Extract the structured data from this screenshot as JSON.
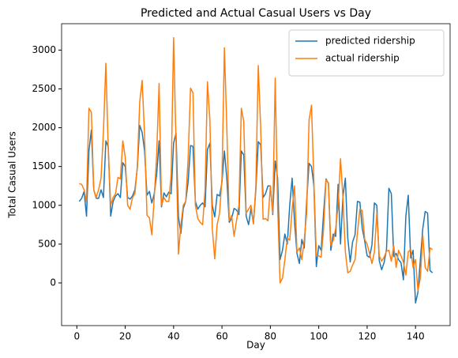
{
  "chart_data": {
    "type": "line",
    "title": "Predicted and Actual Casual Users vs Day",
    "x_label": "Day",
    "y_label": "Total Casual Users",
    "x": [
      1,
      2,
      3,
      4,
      5,
      6,
      7,
      8,
      9,
      10,
      11,
      12,
      13,
      14,
      15,
      16,
      17,
      18,
      19,
      20,
      21,
      22,
      23,
      24,
      25,
      26,
      27,
      28,
      29,
      30,
      31,
      32,
      33,
      34,
      35,
      36,
      37,
      38,
      39,
      40,
      41,
      42,
      43,
      44,
      45,
      46,
      47,
      48,
      49,
      50,
      51,
      52,
      53,
      54,
      55,
      56,
      57,
      58,
      59,
      60,
      61,
      62,
      63,
      64,
      65,
      66,
      67,
      68,
      69,
      70,
      71,
      72,
      73,
      74,
      75,
      76,
      77,
      78,
      79,
      80,
      81,
      82,
      83,
      84,
      85,
      86,
      87,
      88,
      89,
      90,
      91,
      92,
      93,
      94,
      95,
      96,
      97,
      98,
      99,
      100,
      101,
      102,
      103,
      104,
      105,
      106,
      107,
      108,
      109,
      110,
      111,
      112,
      113,
      114,
      115,
      116,
      117,
      118,
      119,
      120,
      121,
      122,
      123,
      124,
      125,
      126,
      127,
      128,
      129,
      130,
      131,
      132,
      133,
      134,
      135,
      136,
      137,
      138,
      139,
      140,
      141,
      142,
      143,
      144,
      145,
      146,
      147
    ],
    "series": [
      {
        "name": "predicted ridership",
        "color": "#1f77b4",
        "values": [
          1050,
          1090,
          1180,
          860,
          1700,
          1970,
          1200,
          1090,
          1090,
          1200,
          1100,
          1830,
          1750,
          860,
          1050,
          1120,
          1150,
          1100,
          1550,
          1500,
          1100,
          1080,
          1120,
          1200,
          1480,
          2030,
          1940,
          1700,
          1130,
          1180,
          1030,
          1150,
          1400,
          1830,
          980,
          1160,
          1110,
          1170,
          1150,
          1800,
          1930,
          850,
          640,
          960,
          1050,
          1300,
          1770,
          1760,
          1050,
          950,
          1000,
          1030,
          980,
          1720,
          1800,
          1000,
          850,
          1140,
          1120,
          1300,
          1700,
          1350,
          780,
          830,
          960,
          940,
          880,
          1700,
          1650,
          860,
          750,
          960,
          770,
          1200,
          1820,
          1780,
          1100,
          1150,
          1250,
          1250,
          880,
          1570,
          1350,
          300,
          420,
          630,
          500,
          1000,
          1350,
          780,
          380,
          250,
          560,
          450,
          1050,
          1540,
          1500,
          1250,
          210,
          480,
          420,
          900,
          1340,
          1280,
          420,
          630,
          600,
          1270,
          500,
          1110,
          1350,
          580,
          270,
          530,
          620,
          1050,
          1040,
          700,
          540,
          350,
          330,
          490,
          1030,
          1000,
          290,
          170,
          260,
          430,
          1220,
          1150,
          340,
          380,
          300,
          260,
          40,
          860,
          1130,
          320,
          420,
          -260,
          -120,
          300,
          700,
          920,
          900,
          160,
          130
        ]
      },
      {
        "name": "actual ridership",
        "color": "#ff7f0e",
        "values": [
          1280,
          1270,
          1200,
          1050,
          2250,
          2200,
          1200,
          1100,
          1200,
          1350,
          1950,
          2830,
          1700,
          1000,
          1100,
          1150,
          1360,
          1340,
          1830,
          1620,
          1000,
          950,
          1100,
          1150,
          1500,
          2330,
          2610,
          1900,
          870,
          840,
          620,
          1100,
          1650,
          2570,
          1000,
          1100,
          1050,
          1050,
          1400,
          3160,
          1800,
          370,
          750,
          1000,
          1050,
          1600,
          2510,
          2450,
          1000,
          830,
          780,
          750,
          1200,
          2590,
          2100,
          700,
          310,
          750,
          900,
          1350,
          3030,
          2000,
          800,
          870,
          600,
          800,
          1000,
          2250,
          2080,
          900,
          950,
          1000,
          760,
          1250,
          2800,
          2000,
          820,
          830,
          800,
          1250,
          900,
          2640,
          1000,
          0,
          60,
          300,
          580,
          550,
          950,
          1250,
          400,
          450,
          300,
          550,
          900,
          2100,
          2290,
          1300,
          350,
          350,
          330,
          700,
          1330,
          1290,
          480,
          550,
          700,
          1000,
          1600,
          1100,
          400,
          130,
          150,
          230,
          300,
          650,
          950,
          930,
          560,
          500,
          380,
          250,
          400,
          900,
          350,
          280,
          330,
          410,
          420,
          280,
          480,
          200,
          420,
          350,
          270,
          100,
          400,
          430,
          200,
          300,
          -100,
          60,
          620,
          200,
          150,
          450,
          430
        ]
      }
    ],
    "xlim": [
      -6.3,
      154.3
    ],
    "xticks": [
      0,
      20,
      40,
      60,
      80,
      100,
      120,
      140
    ],
    "ylim": [
      -550,
      3340
    ],
    "yticks": [
      0,
      500,
      1000,
      1500,
      2000,
      2500,
      3000
    ],
    "legend": "upper right"
  }
}
